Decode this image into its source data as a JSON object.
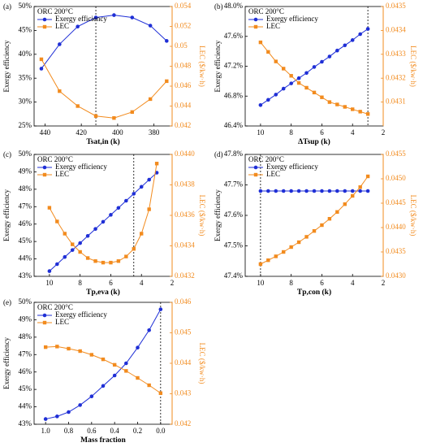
{
  "chart_data": [
    {
      "type": "line",
      "title": "(a)",
      "legend_title": "ORC 200°C",
      "xlabel": "Tsat,in (k)",
      "ylabel": "Exergy efficiency",
      "y2label": "LEC ($/kw·h)",
      "x": [
        442,
        432,
        422,
        412,
        402,
        392,
        382,
        373
      ],
      "series": [
        {
          "name": "Exergy efficiency",
          "color": "#1f2fd6",
          "marker": "circle",
          "values": [
            37.0,
            42.1,
            45.8,
            47.7,
            48.2,
            47.7,
            46.0,
            42.8
          ]
        },
        {
          "name": "LEC",
          "color": "#f28b1e",
          "marker": "square",
          "axis": "y2",
          "values": [
            0.0487,
            0.0455,
            0.044,
            0.043,
            0.0428,
            0.0434,
            0.0447,
            0.0465
          ]
        }
      ],
      "xlim": [
        446,
        370
      ],
      "xticks": [
        440,
        420,
        400,
        380
      ],
      "ylim": [
        25,
        50
      ],
      "yticks": [
        {
          "value": 25,
          "label": "25%"
        },
        {
          "value": 30,
          "label": "30%"
        },
        {
          "value": 35,
          "label": "35%"
        },
        {
          "value": 40,
          "label": "40%"
        },
        {
          "value": 45,
          "label": "45%"
        },
        {
          "value": 50,
          "label": "50%"
        }
      ],
      "y2lim": [
        0.042,
        0.054
      ],
      "y2ticks": [
        0.042,
        0.044,
        0.046,
        0.048,
        0.05,
        0.052,
        0.054
      ],
      "vline": 412
    },
    {
      "type": "line",
      "title": "(b)",
      "legend_title": "ORC 200°C",
      "xlabel": "ΔTsup (k)",
      "ylabel": "Exergy efficiency",
      "y2label": "LEC ($/kw·h)",
      "x": [
        10,
        9.5,
        9,
        8.5,
        8,
        7.5,
        7,
        6.5,
        6,
        5.5,
        5,
        4.5,
        4,
        3.5,
        3
      ],
      "series": [
        {
          "name": "Exergy efficiency",
          "color": "#1f2fd6",
          "marker": "circle",
          "values": [
            46.68,
            46.75,
            46.82,
            46.9,
            46.97,
            47.04,
            47.11,
            47.19,
            47.26,
            47.33,
            47.41,
            47.48,
            47.55,
            47.63,
            47.7
          ]
        },
        {
          "name": "LEC",
          "color": "#f28b1e",
          "marker": "square",
          "axis": "y2",
          "values": [
            0.04335,
            0.04331,
            0.04327,
            0.04324,
            0.04321,
            0.04318,
            0.04316,
            0.04314,
            0.04312,
            0.0431,
            0.04309,
            0.04308,
            0.04307,
            0.04306,
            0.04305
          ]
        }
      ],
      "xlim": [
        11,
        2
      ],
      "xticks": [
        10,
        8,
        6,
        4,
        2
      ],
      "ylim": [
        46.4,
        48.0
      ],
      "yticks": [
        {
          "value": 46.4,
          "label": "46.4%"
        },
        {
          "value": 46.8,
          "label": "46.8%"
        },
        {
          "value": 47.2,
          "label": "47.2%"
        },
        {
          "value": 47.6,
          "label": "47.6%"
        },
        {
          "value": 48.0,
          "label": "48.0%"
        }
      ],
      "y2lim": [
        0.043,
        0.0435
      ],
      "y2ticks": [
        {
          "value": 0.0431,
          "label": "0.0431"
        },
        {
          "value": 0.0432,
          "label": "0.0432"
        },
        {
          "value": 0.0433,
          "label": "0.0433"
        },
        {
          "value": 0.0434,
          "label": "0.0434"
        },
        {
          "value": 0.0435,
          "label": "0.0435"
        }
      ],
      "vline": 3
    },
    {
      "type": "line",
      "title": "(c)",
      "legend_title": "ORC 200°C",
      "xlabel": "Tp,eva (k)",
      "ylabel": "Exergy efficiency",
      "y2label": "LEC ($/kw·h)",
      "x": [
        10,
        9.5,
        9,
        8.5,
        8,
        7.5,
        7,
        6.5,
        6,
        5.5,
        5,
        4.5,
        4,
        3.5,
        3
      ],
      "series": [
        {
          "name": "Exergy efficiency",
          "color": "#1f2fd6",
          "marker": "circle",
          "values": [
            43.3,
            43.7,
            44.11,
            44.51,
            44.91,
            45.32,
            45.72,
            46.13,
            46.53,
            46.93,
            47.34,
            47.74,
            48.14,
            48.55,
            48.95
          ]
        },
        {
          "name": "LEC",
          "color": "#f28b1e",
          "marker": "square",
          "axis": "y2",
          "values": [
            0.04365,
            0.04356,
            0.04348,
            0.04341,
            0.04336,
            0.04332,
            0.0433,
            0.04329,
            0.04329,
            0.0433,
            0.04333,
            0.04338,
            0.04348,
            0.04364,
            0.04394
          ]
        }
      ],
      "xlim": [
        11,
        2
      ],
      "xticks": [
        10,
        8,
        6,
        4,
        2
      ],
      "ylim": [
        43,
        50
      ],
      "yticks": [
        {
          "value": 43,
          "label": "43%"
        },
        {
          "value": 44,
          "label": "44%"
        },
        {
          "value": 45,
          "label": "45%"
        },
        {
          "value": 46,
          "label": "46%"
        },
        {
          "value": 47,
          "label": "47%"
        },
        {
          "value": 48,
          "label": "48%"
        },
        {
          "value": 49,
          "label": "49%"
        },
        {
          "value": 50,
          "label": "50%"
        }
      ],
      "y2lim": [
        0.0432,
        0.044
      ],
      "y2ticks": [
        0.0432,
        0.0434,
        0.0436,
        0.0438,
        {
          "value": 0.044,
          "label": "0.0440"
        }
      ],
      "vline": 4.5
    },
    {
      "type": "line",
      "title": "(d)",
      "legend_title": "ORC 200°C",
      "xlabel": "Tp,con (k)",
      "ylabel": "Exergy efficiency",
      "y2label": "LEC ($/kw·h)",
      "x": [
        10,
        9.5,
        9,
        8.5,
        8,
        7.5,
        7,
        6.5,
        6,
        5.5,
        5,
        4.5,
        4,
        3.5,
        3
      ],
      "series": [
        {
          "name": "Exergy efficiency",
          "color": "#1f2fd6",
          "marker": "circle",
          "values": [
            47.68,
            47.68,
            47.68,
            47.68,
            47.68,
            47.68,
            47.68,
            47.68,
            47.68,
            47.68,
            47.68,
            47.68,
            47.68,
            47.68,
            47.68
          ]
        },
        {
          "name": "LEC",
          "color": "#f28b1e",
          "marker": "square",
          "axis": "y2",
          "values": [
            0.04325,
            0.04333,
            0.04341,
            0.0435,
            0.0436,
            0.0437,
            0.04381,
            0.04393,
            0.04405,
            0.04418,
            0.04432,
            0.04448,
            0.04465,
            0.04483,
            0.04505
          ]
        }
      ],
      "xlim": [
        11,
        2
      ],
      "xticks": [
        10,
        8,
        6,
        4,
        2
      ],
      "ylim": [
        47.4,
        47.8
      ],
      "yticks": [
        {
          "value": 47.4,
          "label": "47.4%"
        },
        {
          "value": 47.5,
          "label": "47.5%"
        },
        {
          "value": 47.6,
          "label": "47.6%"
        },
        {
          "value": 47.7,
          "label": "47.7%"
        },
        {
          "value": 47.8,
          "label": "47.8%"
        }
      ],
      "y2lim": [
        0.043,
        0.0455
      ],
      "y2ticks": [
        {
          "value": 0.043,
          "label": "0.0430"
        },
        0.0435,
        {
          "value": 0.044,
          "label": "0.0440"
        },
        0.0445,
        {
          "value": 0.045,
          "label": "0.0450"
        },
        0.0455
      ],
      "vline": 10
    },
    {
      "type": "line",
      "title": "(e)",
      "legend_title": "ORC 200°C",
      "xlabel": "Mass fraction",
      "ylabel": "Exergy efficiency",
      "y2label": "LEC ($/kw·h)",
      "x": [
        1.0,
        0.9,
        0.8,
        0.7,
        0.6,
        0.5,
        0.4,
        0.3,
        0.2,
        0.1,
        0.0
      ],
      "series": [
        {
          "name": "Exergy efficiency",
          "color": "#1f2fd6",
          "marker": "circle",
          "values": [
            43.3,
            43.45,
            43.7,
            44.1,
            44.6,
            45.2,
            45.8,
            46.5,
            47.4,
            48.4,
            49.6
          ]
        },
        {
          "name": "LEC",
          "color": "#f28b1e",
          "marker": "square",
          "axis": "y2",
          "values": [
            0.04453,
            0.04455,
            0.04448,
            0.0444,
            0.04428,
            0.04413,
            0.04395,
            0.04375,
            0.04352,
            0.04328,
            0.04302
          ]
        }
      ],
      "xlim": [
        1.1,
        -0.1
      ],
      "xticks": [
        {
          "value": 1.0,
          "label": "1.0"
        },
        0.8,
        0.6,
        0.4,
        0.2,
        {
          "value": 0.0,
          "label": "0.0"
        }
      ],
      "ylim": [
        43,
        50
      ],
      "yticks": [
        {
          "value": 43,
          "label": "43%"
        },
        {
          "value": 44,
          "label": "44%"
        },
        {
          "value": 45,
          "label": "45%"
        },
        {
          "value": 46,
          "label": "46%"
        },
        {
          "value": 47,
          "label": "47%"
        },
        {
          "value": 48,
          "label": "48%"
        },
        {
          "value": 49,
          "label": "49%"
        },
        {
          "value": 50,
          "label": "50%"
        }
      ],
      "y2lim": [
        0.042,
        0.046
      ],
      "y2ticks": [
        0.042,
        0.043,
        0.044,
        0.045,
        0.046
      ],
      "vline": 0.0
    }
  ]
}
